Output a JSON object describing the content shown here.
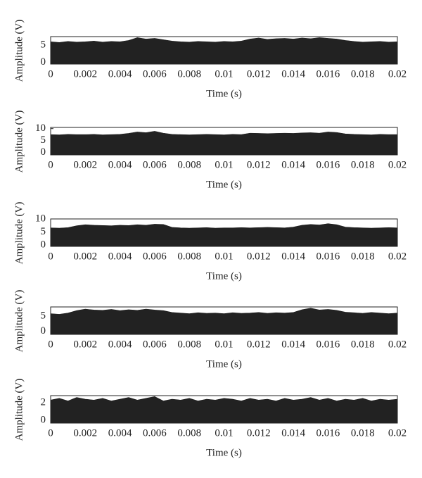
{
  "chart_data": [
    {
      "type": "area",
      "ylabel": "Amplitude (V)",
      "xlabel": "Time (s)",
      "color": "#222222",
      "x": [
        0,
        0.0005,
        0.001,
        0.0015,
        0.002,
        0.0025,
        0.003,
        0.0035,
        0.004,
        0.0045,
        0.005,
        0.0055,
        0.006,
        0.0065,
        0.007,
        0.0075,
        0.008,
        0.0085,
        0.009,
        0.0095,
        0.01,
        0.0105,
        0.011,
        0.0115,
        0.012,
        0.0125,
        0.013,
        0.0135,
        0.014,
        0.0145,
        0.015,
        0.0155,
        0.016,
        0.0165,
        0.017,
        0.0175,
        0.018,
        0.0185,
        0.019,
        0.0195,
        0.02
      ],
      "values": [
        6.0,
        5.8,
        6.1,
        5.9,
        6.0,
        6.2,
        5.9,
        6.1,
        6.0,
        6.4,
        7.2,
        6.8,
        7.0,
        6.6,
        6.2,
        6.0,
        5.9,
        6.1,
        6.0,
        5.9,
        6.1,
        6.0,
        6.2,
        6.8,
        7.1,
        6.7,
        6.9,
        7.0,
        6.8,
        7.1,
        6.9,
        7.2,
        7.0,
        6.8,
        6.4,
        6.1,
        5.9,
        6.0,
        6.1,
        5.9,
        6.0
      ],
      "xlim": [
        0,
        0.02
      ],
      "xticks": [
        0,
        0.002,
        0.004,
        0.006,
        0.008,
        0.01,
        0.012,
        0.014,
        0.016,
        0.018,
        0.02
      ],
      "ylim": [
        -0.5,
        7.5
      ],
      "yticks": [
        0,
        5
      ]
    },
    {
      "type": "area",
      "ylabel": "Amplitude (V)",
      "xlabel": "Time (s)",
      "color": "#222222",
      "x": [
        0,
        0.0005,
        0.001,
        0.0015,
        0.002,
        0.0025,
        0.003,
        0.0035,
        0.004,
        0.0045,
        0.005,
        0.0055,
        0.006,
        0.0065,
        0.007,
        0.0075,
        0.008,
        0.0085,
        0.009,
        0.0095,
        0.01,
        0.0105,
        0.011,
        0.0115,
        0.012,
        0.0125,
        0.013,
        0.0135,
        0.014,
        0.0145,
        0.015,
        0.0155,
        0.016,
        0.0165,
        0.017,
        0.0175,
        0.018,
        0.0185,
        0.019,
        0.0195,
        0.02
      ],
      "values": [
        7.5,
        7.4,
        7.6,
        7.5,
        7.5,
        7.6,
        7.4,
        7.5,
        7.6,
        8.0,
        8.6,
        8.3,
        8.9,
        8.1,
        7.6,
        7.5,
        7.4,
        7.5,
        7.6,
        7.5,
        7.4,
        7.6,
        7.5,
        8.1,
        8.0,
        7.9,
        8.0,
        8.1,
        8.0,
        8.2,
        8.3,
        8.1,
        8.6,
        8.4,
        7.8,
        7.6,
        7.5,
        7.4,
        7.6,
        7.5,
        7.5
      ],
      "xlim": [
        0,
        0.02
      ],
      "xticks": [
        0,
        0.002,
        0.004,
        0.006,
        0.008,
        0.01,
        0.012,
        0.014,
        0.016,
        0.018,
        0.02
      ],
      "ylim": [
        -1,
        10.5
      ],
      "yticks": [
        0,
        5,
        10
      ]
    },
    {
      "type": "area",
      "ylabel": "Amplitude (V)",
      "xlabel": "Time (s)",
      "color": "#222222",
      "x": [
        0,
        0.0005,
        0.001,
        0.0015,
        0.002,
        0.0025,
        0.003,
        0.0035,
        0.004,
        0.0045,
        0.005,
        0.0055,
        0.006,
        0.0065,
        0.007,
        0.0075,
        0.008,
        0.0085,
        0.009,
        0.0095,
        0.01,
        0.0105,
        0.011,
        0.0115,
        0.012,
        0.0125,
        0.013,
        0.0135,
        0.014,
        0.0145,
        0.015,
        0.0155,
        0.016,
        0.0165,
        0.017,
        0.0175,
        0.018,
        0.0185,
        0.019,
        0.0195,
        0.02
      ],
      "values": [
        6.6,
        6.5,
        6.7,
        7.4,
        7.8,
        7.6,
        7.5,
        7.4,
        7.6,
        7.5,
        7.8,
        7.6,
        8.0,
        7.9,
        6.8,
        6.6,
        6.5,
        6.6,
        6.7,
        6.5,
        6.6,
        6.6,
        6.7,
        6.6,
        6.7,
        6.8,
        6.7,
        6.6,
        6.9,
        7.6,
        7.9,
        7.7,
        8.2,
        7.8,
        6.9,
        6.7,
        6.6,
        6.5,
        6.6,
        6.7,
        6.6
      ],
      "xlim": [
        0,
        0.02
      ],
      "xticks": [
        0,
        0.002,
        0.004,
        0.006,
        0.008,
        0.01,
        0.012,
        0.014,
        0.016,
        0.018,
        0.02
      ],
      "ylim": [
        -0.5,
        10
      ],
      "yticks": [
        0,
        5,
        10
      ]
    },
    {
      "type": "area",
      "ylabel": "Amplitude (V)",
      "xlabel": "Time (s)",
      "color": "#222222",
      "x": [
        0,
        0.0005,
        0.001,
        0.0015,
        0.002,
        0.0025,
        0.003,
        0.0035,
        0.004,
        0.0045,
        0.005,
        0.0055,
        0.006,
        0.0065,
        0.007,
        0.0075,
        0.008,
        0.0085,
        0.009,
        0.0095,
        0.01,
        0.0105,
        0.011,
        0.0115,
        0.012,
        0.0125,
        0.013,
        0.0135,
        0.014,
        0.0145,
        0.015,
        0.0155,
        0.016,
        0.0165,
        0.017,
        0.0175,
        0.018,
        0.0185,
        0.019,
        0.0195,
        0.02
      ],
      "values": [
        5.8,
        5.6,
        6.0,
        6.8,
        7.3,
        7.0,
        6.9,
        7.2,
        6.8,
        7.1,
        6.9,
        7.3,
        7.0,
        6.8,
        6.2,
        6.0,
        5.8,
        6.1,
        5.9,
        6.0,
        5.8,
        6.1,
        5.9,
        6.0,
        6.2,
        5.9,
        6.1,
        6.0,
        6.2,
        7.1,
        7.6,
        7.0,
        7.2,
        6.9,
        6.3,
        6.1,
        5.9,
        6.2,
        6.0,
        5.8,
        6.0
      ],
      "xlim": [
        0,
        0.02
      ],
      "xticks": [
        0,
        0.002,
        0.004,
        0.006,
        0.008,
        0.01,
        0.012,
        0.014,
        0.016,
        0.018,
        0.02
      ],
      "ylim": [
        -1,
        8
      ],
      "yticks": [
        0,
        5
      ]
    },
    {
      "type": "area",
      "ylabel": "Amplitude (V)",
      "xlabel": "Time (s)",
      "color": "#222222",
      "x": [
        0,
        0.0005,
        0.001,
        0.0015,
        0.002,
        0.0025,
        0.003,
        0.0035,
        0.004,
        0.0045,
        0.005,
        0.0055,
        0.006,
        0.0065,
        0.007,
        0.0075,
        0.008,
        0.0085,
        0.009,
        0.0095,
        0.01,
        0.0105,
        0.011,
        0.0115,
        0.012,
        0.0125,
        0.013,
        0.0135,
        0.014,
        0.0145,
        0.015,
        0.0155,
        0.016,
        0.0165,
        0.017,
        0.0175,
        0.018,
        0.0185,
        0.019,
        0.0195,
        0.02
      ],
      "values": [
        2.3,
        2.5,
        2.2,
        2.6,
        2.4,
        2.3,
        2.5,
        2.2,
        2.4,
        2.6,
        2.3,
        2.5,
        2.7,
        2.2,
        2.4,
        2.3,
        2.5,
        2.2,
        2.4,
        2.3,
        2.5,
        2.4,
        2.2,
        2.5,
        2.3,
        2.4,
        2.2,
        2.5,
        2.3,
        2.4,
        2.6,
        2.3,
        2.5,
        2.2,
        2.4,
        2.3,
        2.5,
        2.2,
        2.4,
        2.3,
        2.4
      ],
      "xlim": [
        0,
        0.02
      ],
      "xticks": [
        0,
        0.002,
        0.004,
        0.006,
        0.008,
        0.01,
        0.012,
        0.014,
        0.016,
        0.018,
        0.02
      ],
      "ylim": [
        -0.3,
        2.8
      ],
      "yticks": [
        0,
        2
      ]
    }
  ]
}
